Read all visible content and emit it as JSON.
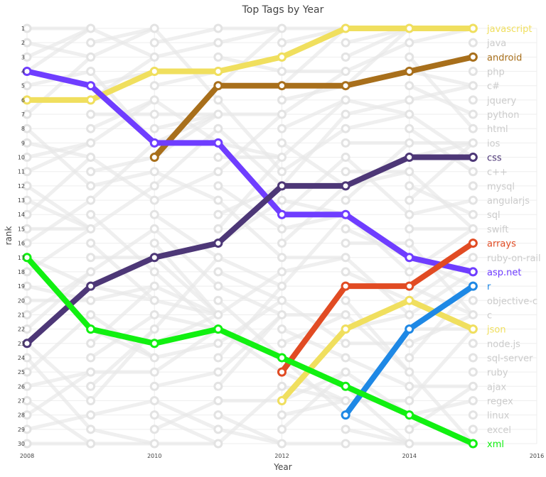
{
  "chart_data": {
    "type": "line",
    "title": "Top Tags by Year",
    "xlabel": "Year",
    "ylabel": "rank",
    "xlim": [
      2008,
      2016
    ],
    "x_ticks": [
      "2008",
      "2010",
      "2012",
      "2014",
      "2016"
    ],
    "ylim": [
      1,
      30
    ],
    "y_reversed": true,
    "y_ticks": [
      "1",
      "2",
      "3",
      "4",
      "5",
      "6",
      "7",
      "8",
      "9",
      "10",
      "11",
      "12",
      "13",
      "14",
      "15",
      "16",
      "17",
      "18",
      "19",
      "20",
      "21",
      "22",
      "23",
      "24",
      "25",
      "26",
      "27",
      "28",
      "29",
      "30"
    ],
    "years": [
      2008,
      2009,
      2010,
      2011,
      2012,
      2013,
      2014,
      2015
    ],
    "grid": true,
    "legend": "labels at right end of lines",
    "right_labels": [
      "javascript",
      "java",
      "android",
      "php",
      "c#",
      "jquery",
      "python",
      "html",
      "ios",
      "css",
      "c++",
      "mysql",
      "angularjs",
      "sql",
      "swift",
      "arrays",
      "ruby-on-rail",
      "asp.net",
      "r",
      "objective-c",
      "c",
      "json",
      "node.js",
      "sql-server",
      "ruby",
      "ajax",
      "regex",
      "linux",
      "excel",
      "xml"
    ],
    "highlight_colors": {
      "javascript": "#F0DF5E",
      "android": "#A86F1B",
      "css": "#4D3777",
      "arrays": "#E14B23",
      "asp.net": "#6F3DFF",
      "r": "#1E88E5",
      "json": "#F0DF5E",
      "xml": "#11F011"
    },
    "muted_color": "#cccccc",
    "series": [
      {
        "name": "javascript",
        "x": [
          2008,
          2009,
          2010,
          2011,
          2012,
          2013,
          2014,
          2015
        ],
        "values": [
          6,
          6,
          4,
          4,
          3,
          1,
          1,
          1
        ]
      },
      {
        "name": "android",
        "x": [
          2010,
          2011,
          2012,
          2013,
          2014,
          2015
        ],
        "values": [
          10,
          5,
          5,
          5,
          4,
          3
        ]
      },
      {
        "name": "asp.net",
        "x": [
          2008,
          2009,
          2010,
          2011,
          2012,
          2013,
          2014,
          2015
        ],
        "values": [
          4,
          5,
          9,
          9,
          14,
          14,
          17,
          18
        ]
      },
      {
        "name": "css",
        "x": [
          2008,
          2009,
          2010,
          2011,
          2012,
          2013,
          2014,
          2015
        ],
        "values": [
          23,
          19,
          17,
          16,
          12,
          12,
          10,
          10
        ]
      },
      {
        "name": "arrays",
        "x": [
          2012,
          2013,
          2014,
          2015
        ],
        "values": [
          25,
          19,
          19,
          16
        ]
      },
      {
        "name": "json",
        "x": [
          2012,
          2013,
          2014,
          2015
        ],
        "values": [
          27,
          22,
          20,
          22
        ]
      },
      {
        "name": "r",
        "x": [
          2013,
          2014,
          2015
        ],
        "values": [
          28,
          22,
          19
        ]
      },
      {
        "name": "xml",
        "x": [
          2008,
          2009,
          2010,
          2011,
          2012,
          2013,
          2014,
          2015
        ],
        "values": [
          17,
          22,
          23,
          22,
          24,
          26,
          28,
          30
        ]
      }
    ]
  }
}
